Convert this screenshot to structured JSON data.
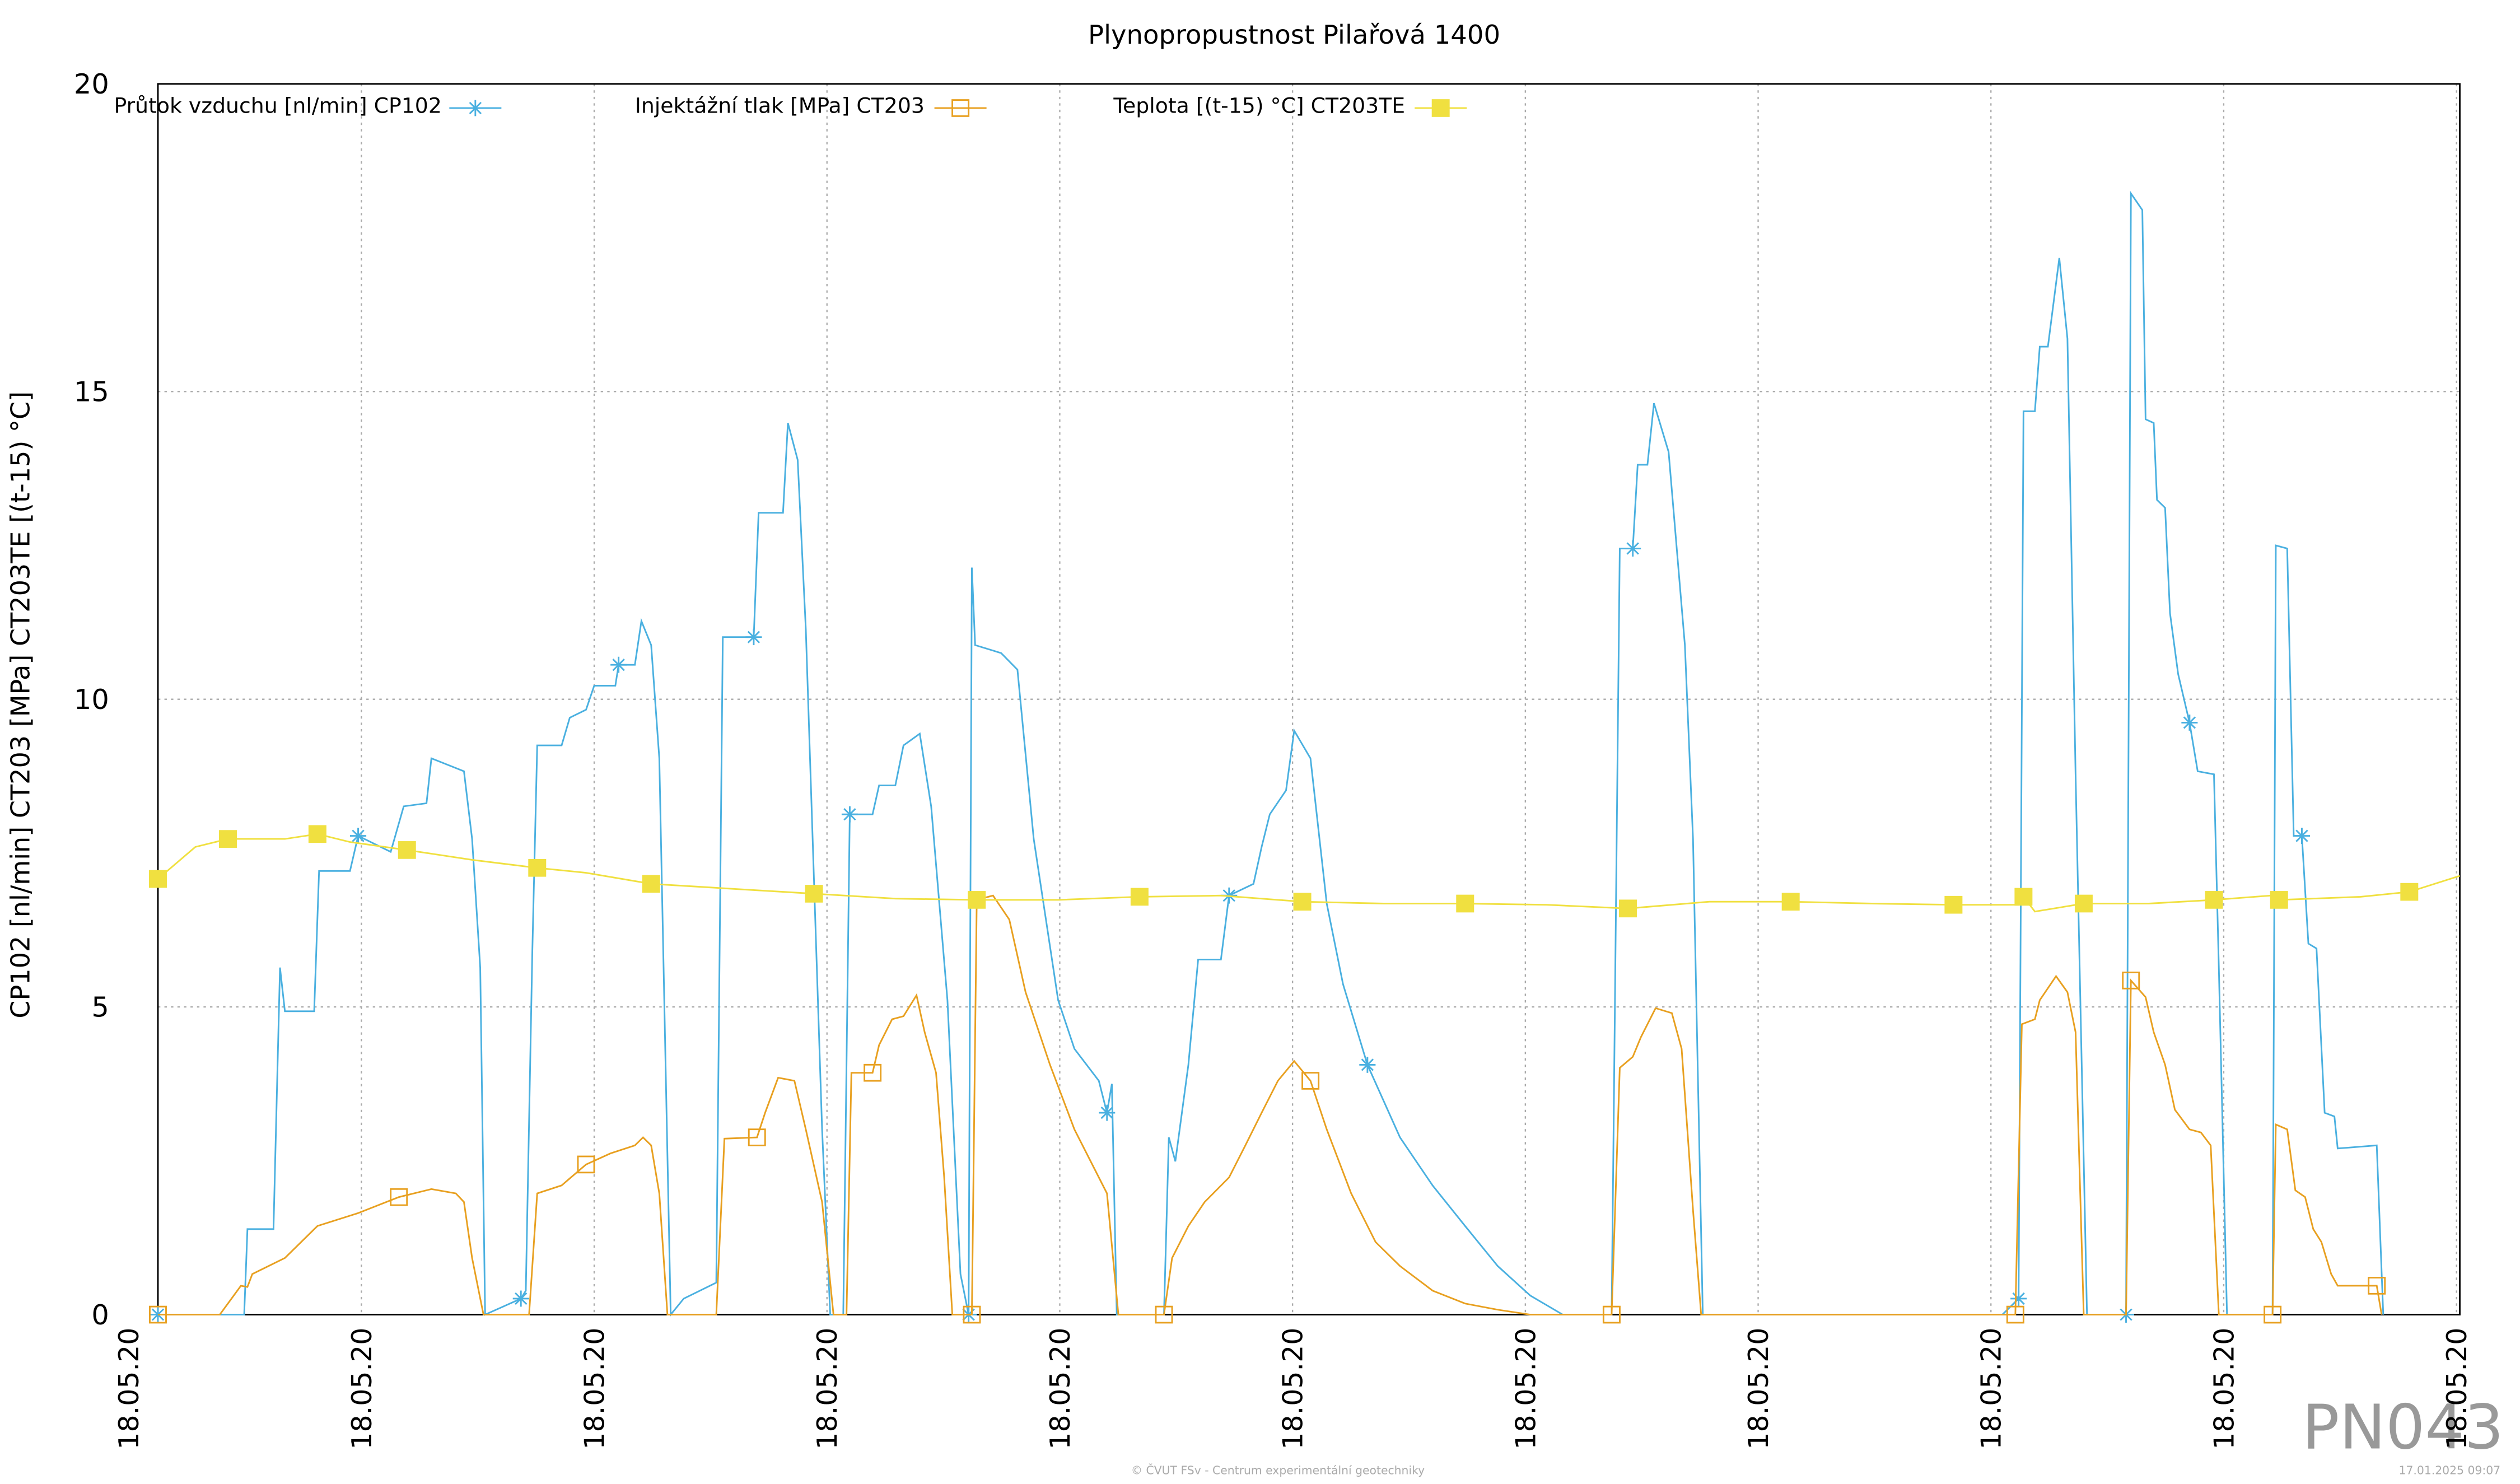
{
  "chart_data": {
    "type": "line",
    "title": "Plynopropustnost Pilařová 1400",
    "ylabel": "CP102 [nl/min] CT203 [MPa] CT203TE [(t-15) °C]",
    "watermark": "PN043",
    "footer": "© ČVUT FSv - Centrum experimentální geotechniky",
    "timestamp": "17.01.2025 09:07",
    "grid": true,
    "xlim": [
      18,
      1432
    ],
    "xticks": [
      {
        "value": 0,
        "label": "18.05.20"
      },
      {
        "value": 143,
        "label": "18.05.20"
      },
      {
        "value": 286,
        "label": "18.05.20"
      },
      {
        "value": 429,
        "label": "18.05.20"
      },
      {
        "value": 572,
        "label": "18.05.20"
      },
      {
        "value": 715,
        "label": "18.05.20"
      },
      {
        "value": 858,
        "label": "18.05.20"
      },
      {
        "value": 1001,
        "label": "18.05.20"
      },
      {
        "value": 1144,
        "label": "18.05.20"
      },
      {
        "value": 1287,
        "label": "18.05.20"
      },
      {
        "value": 1430,
        "label": "18.05.20"
      }
    ],
    "ylim": [
      0,
      20
    ],
    "yticks": [
      0,
      5,
      10,
      15,
      20
    ],
    "series": [
      {
        "name": "Průtok vzduchu [nl/min] CP102",
        "color": "#4ab0e0",
        "marker": "asterisk",
        "x": [
          18,
          71,
          73,
          89,
          93,
          96,
          114,
          117,
          136,
          141,
          161,
          169,
          183,
          186,
          206,
          211,
          216,
          219,
          241,
          244,
          248,
          251,
          266,
          271,
          281,
          286,
          299,
          301,
          311,
          315,
          321,
          326,
          333,
          341,
          361,
          365,
          384,
          387,
          402,
          405,
          411,
          416,
          426,
          431,
          439,
          443,
          457,
          461,
          471,
          476,
          486,
          493,
          503,
          511,
          516,
          518,
          520,
          536,
          546,
          556,
          571,
          581,
          596,
          601,
          604,
          607,
          636,
          639,
          643,
          651,
          657,
          671,
          676,
          691,
          696,
          701,
          711,
          716,
          726,
          736,
          746,
          761,
          781,
          801,
          821,
          841,
          861,
          881,
          911,
          916,
          924,
          927,
          933,
          937,
          946,
          956,
          961,
          967,
          1151,
          1161,
          1164,
          1171,
          1174,
          1179,
          1186,
          1191,
          1196,
          1203,
          1227,
          1230,
          1237,
          1239,
          1244,
          1246,
          1251,
          1254,
          1259,
          1266,
          1271,
          1281,
          1284,
          1289,
          1317,
          1319,
          1326,
          1330,
          1335,
          1339,
          1344,
          1349,
          1355,
          1357,
          1381,
          1385
        ],
        "values": [
          0,
          0,
          1.39,
          1.39,
          5.64,
          4.93,
          4.93,
          7.21,
          7.21,
          7.78,
          7.52,
          8.26,
          8.31,
          9.04,
          8.83,
          7.73,
          5.64,
          0,
          0.26,
          0.39,
          5.9,
          9.25,
          9.25,
          9.7,
          9.83,
          10.22,
          10.22,
          10.56,
          10.56,
          11.27,
          10.88,
          9.04,
          0,
          0.26,
          0.52,
          11.01,
          11.01,
          13.03,
          13.03,
          14.49,
          13.89,
          11.14,
          3.01,
          0,
          0,
          8.13,
          8.13,
          8.6,
          8.6,
          9.25,
          9.44,
          8.26,
          5.11,
          0.66,
          0,
          12.14,
          10.88,
          10.75,
          10.48,
          7.73,
          5.11,
          4.32,
          3.8,
          3.28,
          3.75,
          0,
          0,
          2.88,
          2.49,
          4.06,
          5.77,
          5.77,
          6.81,
          7.0,
          7.6,
          8.13,
          8.52,
          9.49,
          9.04,
          6.68,
          5.37,
          4.06,
          2.88,
          2.1,
          1.44,
          0.79,
          0.31,
          0,
          0,
          12.45,
          12.45,
          13.81,
          13.81,
          14.81,
          14.02,
          10.88,
          7.73,
          0,
          0,
          0.26,
          14.68,
          14.68,
          15.73,
          15.73,
          17.17,
          15.86,
          8.78,
          0,
          0,
          18.22,
          17.95,
          14.55,
          14.49,
          13.24,
          13.11,
          11.4,
          10.41,
          9.62,
          8.83,
          8.78,
          5.64,
          0,
          0,
          12.5,
          12.45,
          7.78,
          7.78,
          6.03,
          5.95,
          3.28,
          3.22,
          2.7,
          2.75,
          0
        ]
      },
      {
        "name": "Injektážní tlak [MPa] CT203",
        "color": "#e8a020",
        "marker": "open-square",
        "x": [
          18,
          56,
          61,
          69,
          73,
          76,
          96,
          116,
          141,
          166,
          186,
          201,
          206,
          211,
          218,
          246,
          251,
          266,
          281,
          296,
          311,
          316,
          321,
          326,
          331,
          361,
          366,
          386,
          391,
          399,
          409,
          416,
          426,
          433,
          441,
          444,
          457,
          461,
          469,
          476,
          484,
          489,
          496,
          501,
          506,
          518,
          521,
          531,
          541,
          551,
          566,
          581,
          601,
          608,
          636,
          641,
          651,
          661,
          676,
          686,
          696,
          706,
          716,
          726,
          736,
          751,
          766,
          781,
          801,
          821,
          841,
          861,
          911,
          916,
          924,
          929,
          938,
          948,
          954,
          961,
          966,
          1159,
          1163,
          1171,
          1174,
          1184,
          1191,
          1196,
          1201,
          1227,
          1230,
          1239,
          1244,
          1251,
          1257,
          1266,
          1273,
          1279,
          1284,
          1317,
          1319,
          1326,
          1331,
          1337,
          1342,
          1347,
          1353,
          1357,
          1381,
          1384
        ],
        "values": [
          0,
          0,
          0.18,
          0.47,
          0.45,
          0.66,
          0.92,
          1.44,
          1.65,
          1.91,
          2.04,
          1.97,
          1.83,
          0.92,
          0,
          0,
          1.97,
          2.1,
          2.44,
          2.62,
          2.75,
          2.88,
          2.75,
          1.97,
          0,
          0,
          2.86,
          2.88,
          3.28,
          3.85,
          3.8,
          3.01,
          1.83,
          0,
          0,
          3.93,
          3.93,
          4.38,
          4.8,
          4.85,
          5.19,
          4.59,
          3.93,
          2.23,
          0,
          0,
          6.74,
          6.81,
          6.42,
          5.24,
          4.06,
          3.01,
          1.97,
          0,
          0,
          0.92,
          1.44,
          1.83,
          2.23,
          2.75,
          3.28,
          3.8,
          4.12,
          3.8,
          3.01,
          1.97,
          1.18,
          0.79,
          0.39,
          0.18,
          0.08,
          0,
          0,
          4.01,
          4.19,
          4.51,
          4.98,
          4.9,
          4.32,
          1.7,
          0,
          0,
          4.72,
          4.8,
          5.11,
          5.5,
          5.24,
          4.59,
          0,
          0,
          5.43,
          5.16,
          4.59,
          4.06,
          3.33,
          3.01,
          2.96,
          2.75,
          0,
          0,
          3.09,
          3.01,
          2.02,
          1.91,
          1.39,
          1.18,
          0.66,
          0.47,
          0.47,
          0
        ]
      },
      {
        "name": "Teplota [(t-15) °C] CT203TE",
        "color": "#f0e040",
        "marker": "filled-square",
        "x": [
          18,
          41,
          61,
          96,
          116,
          136,
          171,
          211,
          251,
          281,
          321,
          371,
          421,
          471,
          521,
          571,
          621,
          671,
          721,
          771,
          821,
          871,
          921,
          971,
          1021,
          1071,
          1121,
          1161,
          1164,
          1171,
          1201,
          1241,
          1281,
          1316,
          1321,
          1371,
          1401,
          1432
        ],
        "values": [
          7.08,
          7.6,
          7.73,
          7.73,
          7.81,
          7.68,
          7.55,
          7.39,
          7.26,
          7.18,
          7.0,
          6.92,
          6.84,
          6.76,
          6.74,
          6.74,
          6.79,
          6.81,
          6.71,
          6.68,
          6.68,
          6.66,
          6.6,
          6.71,
          6.71,
          6.68,
          6.66,
          6.66,
          6.79,
          6.55,
          6.68,
          6.68,
          6.74,
          6.81,
          6.74,
          6.79,
          6.87,
          7.13
        ]
      }
    ]
  }
}
